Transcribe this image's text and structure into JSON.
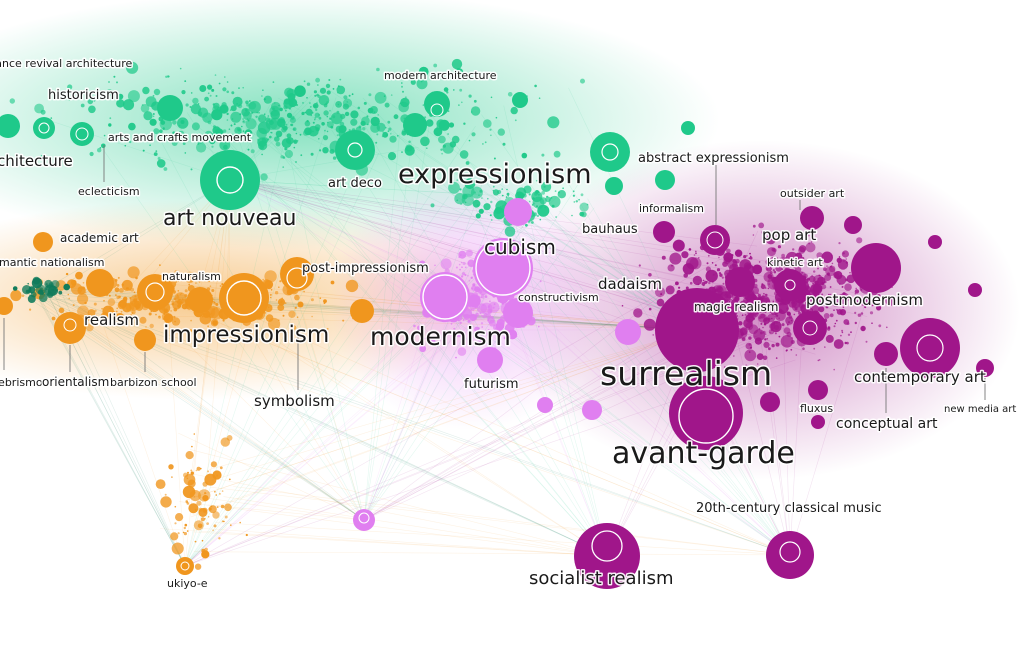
{
  "colors": {
    "green": "#1fc98a",
    "orange": "#f0961e",
    "lilac": "#e07ff0",
    "purple": "#a0168a",
    "dark_green": "#0e7a5a"
  },
  "clusters": [
    {
      "id": "green",
      "color": "#1fc98a"
    },
    {
      "id": "orange",
      "color": "#f0961e"
    },
    {
      "id": "lilac",
      "color": "#e07ff0"
    },
    {
      "id": "purple",
      "color": "#a0168a"
    }
  ],
  "nodes": [
    {
      "label": "renaissance revival architecture",
      "cluster": "green"
    },
    {
      "label": "historicism",
      "cluster": "green"
    },
    {
      "label": "architecture",
      "cluster": "green"
    },
    {
      "label": "arts and crafts movement",
      "cluster": "green"
    },
    {
      "label": "eclecticism",
      "cluster": "green"
    },
    {
      "label": "modern architecture",
      "cluster": "green"
    },
    {
      "label": "art deco",
      "cluster": "green"
    },
    {
      "label": "art nouveau",
      "cluster": "green"
    },
    {
      "label": "expressionism",
      "cluster": "green"
    },
    {
      "label": "abstract expressionism",
      "cluster": "green"
    },
    {
      "label": "bauhaus",
      "cluster": "green"
    },
    {
      "label": "academic art",
      "cluster": "orange"
    },
    {
      "label": "romantic nationalism",
      "cluster": "orange"
    },
    {
      "label": "naturalism",
      "cluster": "orange"
    },
    {
      "label": "post-impressionism",
      "cluster": "orange"
    },
    {
      "label": "realism",
      "cluster": "orange"
    },
    {
      "label": "impressionism",
      "cluster": "orange"
    },
    {
      "label": "tenebrismo",
      "cluster": "orange"
    },
    {
      "label": "orientalism",
      "cluster": "orange"
    },
    {
      "label": "barbizon school",
      "cluster": "orange"
    },
    {
      "label": "symbolism",
      "cluster": "orange"
    },
    {
      "label": "ukiyo-e",
      "cluster": "orange"
    },
    {
      "label": "cubism",
      "cluster": "lilac"
    },
    {
      "label": "constructivism",
      "cluster": "lilac"
    },
    {
      "label": "modernism",
      "cluster": "lilac"
    },
    {
      "label": "futurism",
      "cluster": "lilac"
    },
    {
      "label": "dadaism",
      "cluster": "purple"
    },
    {
      "label": "informalism",
      "cluster": "purple"
    },
    {
      "label": "outsider art",
      "cluster": "purple"
    },
    {
      "label": "pop art",
      "cluster": "purple"
    },
    {
      "label": "kinetic art",
      "cluster": "purple"
    },
    {
      "label": "magic realism",
      "cluster": "purple"
    },
    {
      "label": "postmodernism",
      "cluster": "purple"
    },
    {
      "label": "surrealism",
      "cluster": "purple"
    },
    {
      "label": "contemporary art",
      "cluster": "purple"
    },
    {
      "label": "new media art",
      "cluster": "purple"
    },
    {
      "label": "fluxus",
      "cluster": "purple"
    },
    {
      "label": "conceptual art",
      "cluster": "purple"
    },
    {
      "label": "avant-garde",
      "cluster": "purple"
    },
    {
      "label": "20th-century classical music",
      "cluster": "purple"
    },
    {
      "label": "socialist realism",
      "cluster": "purple"
    }
  ]
}
